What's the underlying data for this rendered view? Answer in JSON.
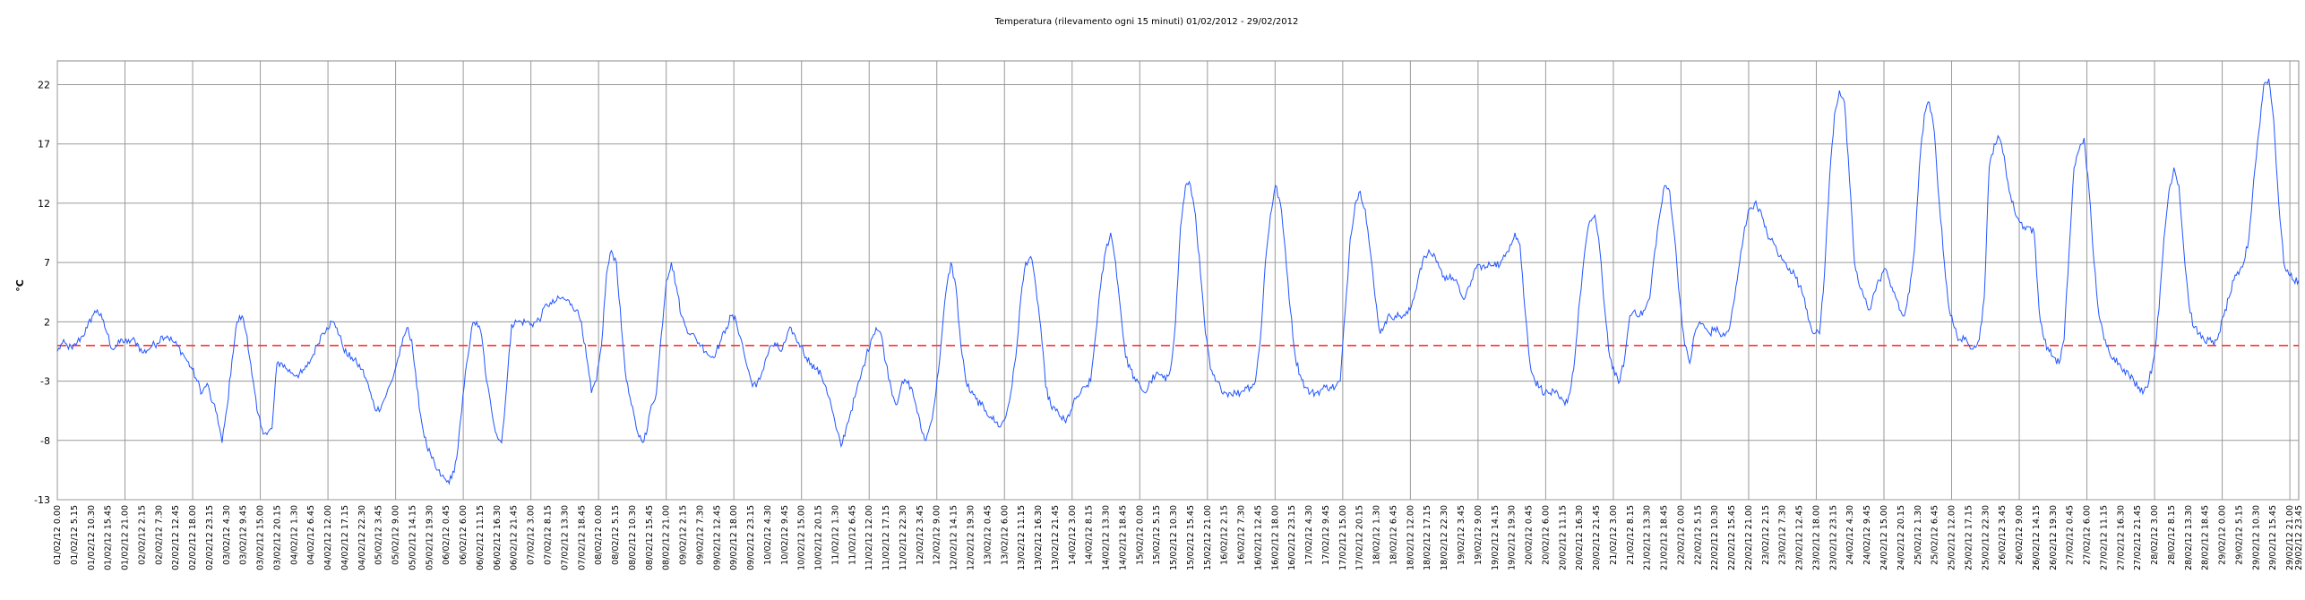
{
  "chart_data": {
    "type": "line",
    "title": "Temperatura (rilevamento ogni 15 minuti) 01/02/2012 - 29/02/2012",
    "ylabel": "°C",
    "ylim": [
      -13,
      24
    ],
    "yticks": [
      22,
      17,
      12,
      7,
      2,
      -3,
      -8,
      -13
    ],
    "grid": true,
    "reference_line": {
      "y": 0,
      "color": "#ff3333",
      "dash": true
    },
    "line_color": "#2255ff",
    "x_start": "01/02/12 0.00",
    "x_step_minutes": 15,
    "x_label_every_minutes": 315,
    "x_gridline_every_minutes": 1260,
    "x_end": "29/02/12 23.45",
    "series": [
      {
        "values": [
          -0.5,
          0.2,
          0.0,
          -0.3,
          0.3,
          0.8,
          1.5,
          2.5,
          3.0,
          2.2,
          1.0,
          -0.3,
          0.0,
          0.5,
          0.2,
          0.5,
          0.2,
          -0.6,
          -0.4,
          0.0,
          0.2,
          0.8,
          0.8,
          0.4,
          0.0,
          -0.6,
          -1.3,
          -2.0,
          -3.0,
          -4.0,
          -3.2,
          -4.8,
          -5.8,
          -8.2,
          -5.2,
          -1.2,
          2.0,
          2.5,
          0.8,
          -2.5,
          -5.5,
          -7.0,
          -7.5,
          -7.0,
          -1.5,
          -1.5,
          -2.0,
          -2.3,
          -2.5,
          -2.3,
          -1.8,
          -1.0,
          0.0,
          1.0,
          1.5,
          2.0,
          1.5,
          0.2,
          -0.8,
          -1.0,
          -1.5,
          -2.0,
          -3.0,
          -4.5,
          -5.5,
          -5.0,
          -4.0,
          -3.0,
          -1.5,
          0.0,
          1.5,
          0.5,
          -3.5,
          -6.5,
          -8.5,
          -9.5,
          -10.5,
          -11.0,
          -11.5,
          -11.2,
          -9.5,
          -5.5,
          -1.5,
          1.5,
          2.0,
          0.8,
          -3.0,
          -5.5,
          -7.5,
          -8.2,
          -3.5,
          1.8,
          2.0,
          2.0,
          2.0,
          1.8,
          2.0,
          2.5,
          3.5,
          3.5,
          3.8,
          4.0,
          3.8,
          3.5,
          3.0,
          2.0,
          -1.0,
          -4.0,
          -3.0,
          0.0,
          6.0,
          8.0,
          7.0,
          1.5,
          -3.0,
          -5.0,
          -7.0,
          -8.0,
          -7.5,
          -5.0,
          -4.0,
          1.0,
          5.5,
          7.0,
          5.0,
          2.5,
          1.5,
          1.0,
          0.5,
          0.0,
          -0.5,
          -1.0,
          -0.5,
          0.5,
          1.5,
          2.5,
          2.0,
          0.5,
          -1.5,
          -3.0,
          -3.5,
          -2.5,
          -1.0,
          0.0,
          0.0,
          -0.5,
          0.5,
          1.5,
          0.5,
          0.0,
          -1.0,
          -1.5,
          -2.0,
          -2.5,
          -3.5,
          -5.0,
          -7.0,
          -8.5,
          -7.0,
          -5.5,
          -4.0,
          -2.5,
          -1.0,
          0.5,
          1.5,
          1.0,
          -1.5,
          -3.5,
          -5.0,
          -3.5,
          -3.0,
          -3.5,
          -5.0,
          -7.0,
          -8.0,
          -6.5,
          -4.0,
          0.0,
          4.5,
          7.0,
          5.0,
          0.0,
          -3.0,
          -4.0,
          -4.5,
          -5.0,
          -5.5,
          -6.0,
          -6.5,
          -6.8,
          -6.0,
          -4.0,
          -1.0,
          4.0,
          7.0,
          7.5,
          5.0,
          1.5,
          -3.5,
          -5.0,
          -5.5,
          -6.0,
          -6.5,
          -5.5,
          -4.5,
          -4.0,
          -3.5,
          -3.0,
          1.0,
          5.0,
          8.0,
          9.5,
          7.0,
          3.0,
          -1.0,
          -2.0,
          -3.0,
          -3.5,
          -4.0,
          -3.0,
          -2.5,
          -2.5,
          -3.0,
          -2.0,
          2.0,
          10.0,
          13.5,
          13.5,
          11.0,
          6.0,
          1.0,
          -2.0,
          -3.0,
          -3.5,
          -4.0,
          -4.0,
          -4.0,
          -4.0,
          -3.5,
          -3.5,
          -3.0,
          0.5,
          7.0,
          11.0,
          13.5,
          12.0,
          8.0,
          3.0,
          -1.0,
          -2.5,
          -3.5,
          -4.0,
          -4.0,
          -3.8,
          -3.5,
          -3.5,
          -3.5,
          -3.0,
          3.0,
          9.0,
          12.0,
          13.0,
          11.5,
          8.0,
          4.0,
          1.0,
          2.0,
          2.5,
          2.5,
          2.5,
          2.5,
          3.0,
          4.5,
          6.5,
          7.5,
          7.8,
          7.5,
          6.5,
          5.5,
          6.0,
          5.5,
          4.5,
          4.0,
          5.0,
          6.5,
          6.8,
          6.5,
          6.8,
          7.0,
          6.8,
          7.5,
          8.5,
          9.5,
          8.5,
          3.0,
          -1.5,
          -3.0,
          -3.5,
          -4.0,
          -4.0,
          -4.0,
          -4.5,
          -5.0,
          -4.0,
          -1.0,
          4.0,
          8.0,
          10.5,
          11.0,
          8.0,
          3.0,
          -1.0,
          -2.5,
          -3.0,
          -1.0,
          2.5,
          3.0,
          2.5,
          3.0,
          4.0,
          8.0,
          11.0,
          13.5,
          13.0,
          9.0,
          4.0,
          0.0,
          -1.5,
          1.0,
          2.0,
          1.5,
          1.0,
          1.5,
          1.0,
          0.8,
          1.5,
          4.0,
          7.0,
          10.0,
          11.5,
          12.0,
          11.5,
          10.0,
          9.0,
          8.5,
          7.5,
          7.0,
          6.5,
          6.0,
          5.0,
          4.0,
          2.0,
          1.0,
          1.0,
          6.0,
          14.0,
          19.5,
          21.5,
          20.5,
          14.0,
          7.0,
          5.0,
          4.0,
          3.0,
          4.5,
          5.5,
          6.5,
          5.5,
          4.5,
          3.0,
          2.5,
          4.5,
          8.0,
          15.0,
          19.5,
          20.5,
          18.0,
          12.0,
          7.0,
          3.0,
          1.5,
          0.5,
          0.5,
          0.0,
          0.0,
          0.5,
          4.0,
          15.0,
          17.0,
          17.5,
          16.0,
          13.0,
          11.5,
          10.5,
          10.0,
          10.0,
          9.5,
          3.0,
          0.5,
          -0.5,
          -1.0,
          -1.5,
          0.5,
          8.0,
          15.0,
          16.5,
          17.5,
          13.0,
          7.0,
          2.5,
          0.5,
          -0.5,
          -1.0,
          -1.5,
          -2.0,
          -2.5,
          -3.0,
          -3.5,
          -3.8,
          -3.0,
          -1.0,
          3.0,
          9.0,
          13.0,
          15.0,
          13.5,
          8.0,
          3.5,
          1.5,
          1.0,
          0.5,
          0.5,
          0.0,
          1.0,
          2.5,
          4.0,
          5.5,
          6.0,
          7.0,
          9.0,
          14.0,
          18.0,
          22.0,
          22.5,
          19.0,
          12.0,
          7.0,
          6.0,
          5.5,
          5.5
        ]
      }
    ]
  }
}
